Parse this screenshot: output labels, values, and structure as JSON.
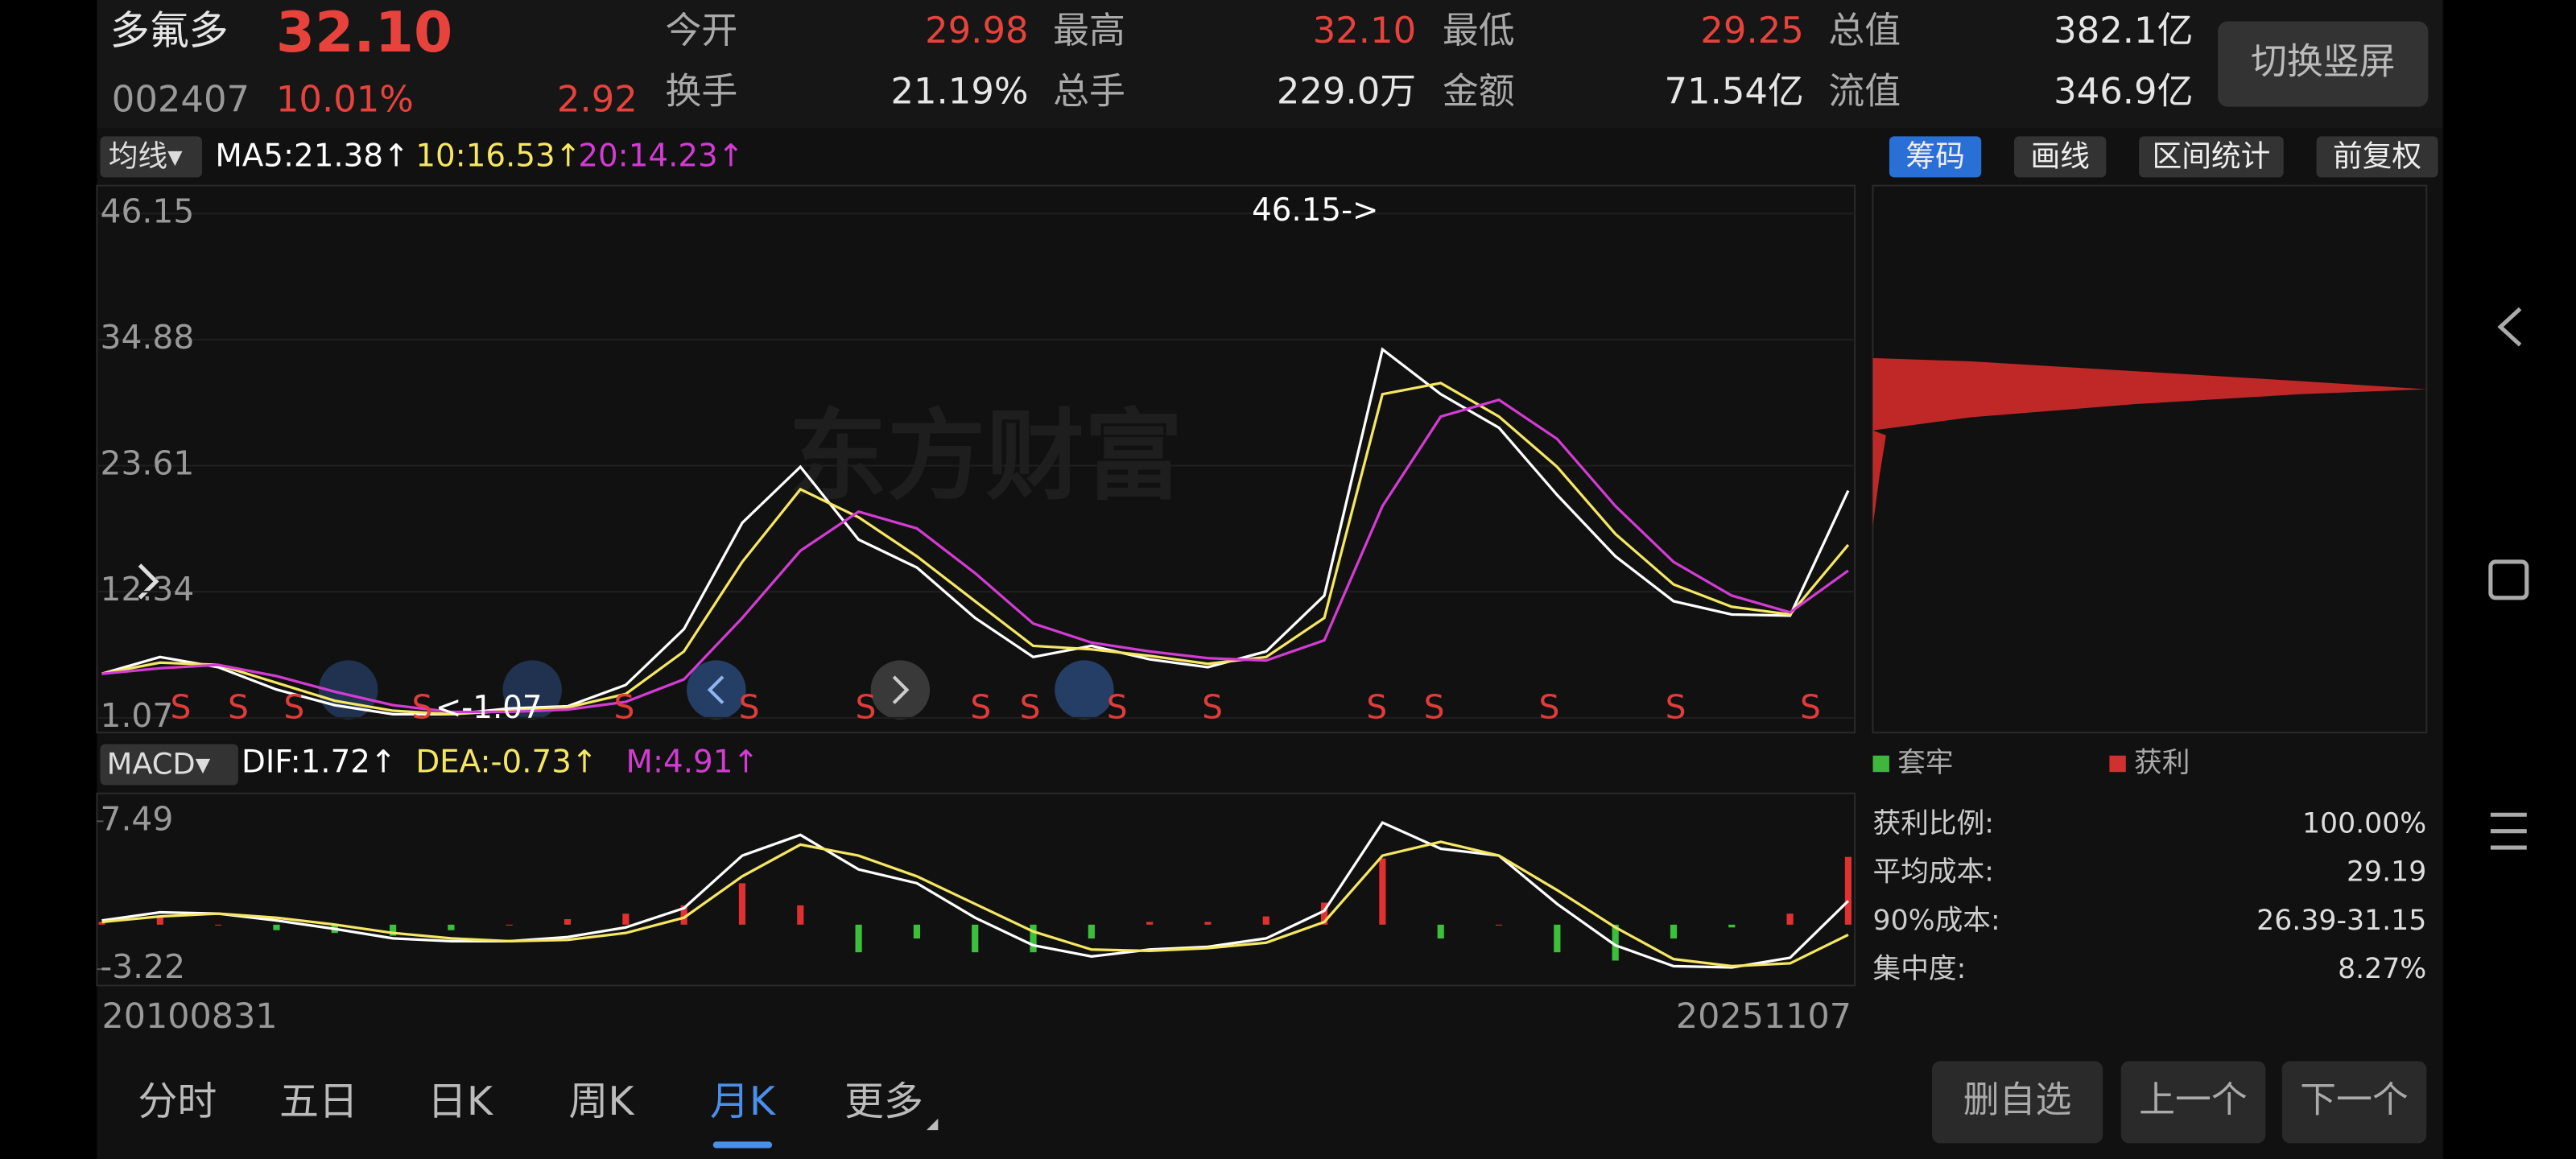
{
  "header": {
    "name": "多氟多",
    "price": "32.10",
    "code": "002407",
    "change_pct": "10.01%",
    "change": "2.92",
    "stats": [
      {
        "label": "今开",
        "value": "29.98",
        "color": "#e8423c"
      },
      {
        "label": "最高",
        "value": "32.10",
        "color": "#e8423c"
      },
      {
        "label": "最低",
        "value": "29.25",
        "color": "#e8423c"
      },
      {
        "label": "总值",
        "value": "382.1亿",
        "color": "#e6e6e6"
      },
      {
        "label": "换手",
        "value": "21.19%",
        "color": "#e6e6e6"
      },
      {
        "label": "总手",
        "value": "229.0万",
        "color": "#e6e6e6"
      },
      {
        "label": "金额",
        "value": "71.54亿",
        "color": "#e6e6e6"
      },
      {
        "label": "流值",
        "value": "346.9亿",
        "color": "#e6e6e6"
      }
    ],
    "button": "切换竖屏"
  },
  "toolbar": {
    "selector": "均线▾",
    "indicators": [
      {
        "text": "MA5:21.38↑",
        "color": "#ffffff"
      },
      {
        "text": "10:16.53↑",
        "color": "#f5e663"
      },
      {
        "text": "20:14.23↑",
        "color": "#d23cd2"
      }
    ],
    "buttons": [
      "筹码",
      "画线",
      "区间统计",
      "前复权"
    ]
  },
  "chart_data": [
    {
      "type": "line",
      "watermark": "东方财富",
      "ylim": [
        1.07,
        46.15
      ],
      "yticks": [
        1.07,
        12.34,
        23.61,
        34.88,
        46.15
      ],
      "grid": true,
      "series": [
        {
          "color": "#ffffff",
          "values": [
            5.0,
            6.5,
            5.6,
            3.6,
            2.2,
            1.4,
            1.4,
            1.9,
            2.1,
            4.0,
            9.0,
            18.5,
            23.5,
            17.0,
            14.5,
            10.0,
            6.5,
            7.5,
            6.3,
            5.6,
            7.0,
            12.0,
            34.0,
            30.0,
            27.0,
            21.0,
            15.5,
            11.5,
            10.3,
            10.2,
            21.38
          ]
        },
        {
          "color": "#f5e663",
          "values": [
            5.0,
            6.0,
            5.8,
            4.2,
            2.6,
            1.7,
            1.4,
            1.7,
            2.0,
            3.2,
            7.0,
            15.0,
            21.5,
            19.0,
            15.5,
            11.5,
            7.5,
            7.2,
            6.6,
            5.9,
            6.5,
            10.0,
            30.0,
            31.0,
            28.0,
            23.5,
            17.5,
            13.0,
            11.0,
            10.3,
            16.53
          ]
        },
        {
          "color": "#d23cd2",
          "values": [
            5.0,
            5.5,
            5.8,
            4.8,
            3.4,
            2.2,
            1.6,
            1.6,
            1.8,
            2.5,
            4.5,
            10.0,
            16.0,
            19.5,
            18.0,
            14.0,
            9.5,
            7.8,
            7.0,
            6.4,
            6.2,
            8.0,
            20.0,
            28.0,
            29.5,
            26.0,
            20.0,
            15.0,
            12.0,
            10.5,
            14.23
          ]
        }
      ],
      "annotations": {
        "high": "46.15->",
        "low": "<-1.07"
      },
      "signals": [
        "S",
        "S",
        "S",
        "S",
        "S",
        "S",
        "S",
        "S",
        "S",
        "S",
        "S",
        "S",
        "S",
        "S",
        "S",
        "S"
      ],
      "x_labels": [
        "20100831",
        "20251107"
      ]
    },
    {
      "type": "macd",
      "selector": "MACD▾",
      "indicators": [
        {
          "text": "DIF:1.72↑",
          "color": "#ffffff"
        },
        {
          "text": "DEA:-0.73↑",
          "color": "#f5e663"
        },
        {
          "text": "M:4.91↑",
          "color": "#d23cd2"
        }
      ],
      "ylim": [
        -3.22,
        7.49
      ],
      "yticks": [
        -3.22,
        7.49
      ],
      "series": [
        {
          "color": "#ffffff",
          "values": [
            0.3,
            0.9,
            0.8,
            0.3,
            -0.3,
            -1.0,
            -1.2,
            -1.2,
            -0.9,
            -0.2,
            1.2,
            5.0,
            6.5,
            4.0,
            3.0,
            0.5,
            -1.5,
            -2.3,
            -1.8,
            -1.6,
            -1.0,
            1.0,
            7.4,
            5.5,
            5.0,
            1.5,
            -1.5,
            -3.0,
            -3.1,
            -2.4,
            1.72
          ]
        },
        {
          "color": "#f5e663",
          "values": [
            0.2,
            0.6,
            0.8,
            0.5,
            0.0,
            -0.6,
            -1.0,
            -1.2,
            -1.1,
            -0.6,
            0.5,
            3.5,
            5.8,
            5.0,
            3.5,
            1.5,
            -0.5,
            -1.8,
            -1.9,
            -1.7,
            -1.3,
            0.2,
            5.0,
            6.0,
            5.0,
            2.5,
            -0.2,
            -2.5,
            -3.0,
            -2.8,
            -0.73
          ]
        }
      ],
      "histogram": {
        "up_color": "#e03030",
        "down_color": "#3cc03c",
        "values": [
          0.2,
          0.6,
          0,
          -0.4,
          -0.6,
          -0.8,
          -0.4,
          0,
          0.4,
          0.8,
          1.4,
          3.0,
          1.4,
          -2.0,
          -1.0,
          -2.0,
          -2.0,
          -1.0,
          0.2,
          0.2,
          0.6,
          1.6,
          4.8,
          -1.0,
          0,
          -2.0,
          -2.6,
          -1.0,
          -0.2,
          0.8,
          4.91
        ]
      }
    }
  ],
  "chip_panel": {
    "legend": [
      {
        "label": "套牢",
        "color": "#3cb83c"
      },
      {
        "label": "获利",
        "color": "#d03030"
      }
    ],
    "stats": [
      {
        "label": "获利比例:",
        "value": "100.00%"
      },
      {
        "label": "平均成本:",
        "value": "29.19"
      },
      {
        "label": "90%成本:",
        "value": "26.39-31.15"
      },
      {
        "label": "集中度:",
        "value": "8.27%"
      }
    ]
  },
  "tabs": {
    "items": [
      "分时",
      "五日",
      "日K",
      "周K",
      "月K",
      "更多"
    ],
    "active": 4
  },
  "actions": [
    "删自选",
    "上一个",
    "下一个"
  ]
}
